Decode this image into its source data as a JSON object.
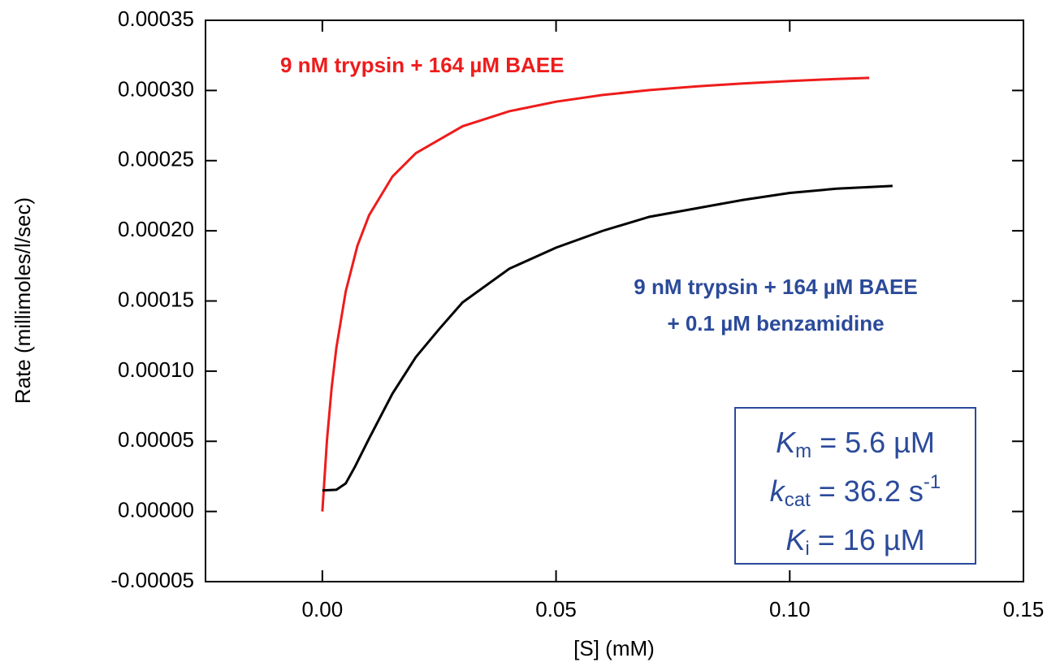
{
  "chart_data": {
    "type": "line",
    "x_label": "[S] (mM)",
    "y_label": "Rate (millimoles/l/sec)",
    "xlim": [
      -0.025,
      0.15
    ],
    "ylim": [
      -5e-05,
      0.00035
    ],
    "xticks": [
      {
        "value": 0,
        "label": "0.00"
      },
      {
        "value": 0.05,
        "label": "0.05"
      },
      {
        "value": 0.1,
        "label": "0.10"
      },
      {
        "value": 0.15,
        "label": "0.15"
      }
    ],
    "yticks": [
      -5e-05,
      {
        "value": 0,
        "label": "0.00000"
      },
      5e-05,
      {
        "value": 0.0001,
        "label": "0.00010"
      },
      0.00015,
      {
        "value": 0.0002,
        "label": "0.00020"
      },
      0.00025,
      {
        "value": 0.0003,
        "label": "0.00030"
      },
      0.00035
    ],
    "series": [
      {
        "name": "9 nM trypsin + 164 µM BAEE",
        "color": "#ee1c1c",
        "x": [
          0,
          0.001,
          0.002,
          0.003,
          0.005,
          0.0075,
          0.01,
          0.015,
          0.02,
          0.03,
          0.04,
          0.05,
          0.06,
          0.07,
          0.08,
          0.09,
          0.1,
          0.11,
          0.117
        ],
        "values": [
          0,
          5.13e-05,
          8.85e-05,
          0.0001167,
          0.0001568,
          0.0001893,
          0.0002111,
          0.0002387,
          0.0002553,
          0.0002745,
          0.0002852,
          0.000292,
          0.0002968,
          0.0003003,
          0.0003029,
          0.000305,
          0.0003067,
          0.0003082,
          0.000309
        ]
      },
      {
        "name": [
          "9 nM trypsin + 164 µM BAEE",
          "+ 0.1 µM benzamidine"
        ],
        "color": "#000000",
        "label_color": "#2b4a9a",
        "x": [
          0,
          0.003,
          0.005,
          0.007,
          0.01,
          0.015,
          0.02,
          0.025,
          0.03,
          0.04,
          0.05,
          0.06,
          0.07,
          0.08,
          0.09,
          0.1,
          0.11,
          0.122
        ],
        "values": [
          1.5e-05,
          1.55e-05,
          2e-05,
          3.2e-05,
          5.2e-05,
          8.4e-05,
          0.00011,
          0.00013,
          0.000149,
          0.000173,
          0.000188,
          0.0002,
          0.00021,
          0.000216,
          0.000222,
          0.000227,
          0.00023,
          0.000232
        ]
      }
    ],
    "parameters_box": {
      "color": "#2b4a9a",
      "lines": [
        {
          "symbol": "K",
          "subscript": "m",
          "text": " = 5.6 µM"
        },
        {
          "symbol": "k",
          "subscript": "cat",
          "text": " = 36.2 s",
          "superscript": "-1"
        },
        {
          "symbol": "K",
          "subscript": "i",
          "text": " = 16 µM"
        }
      ]
    }
  }
}
